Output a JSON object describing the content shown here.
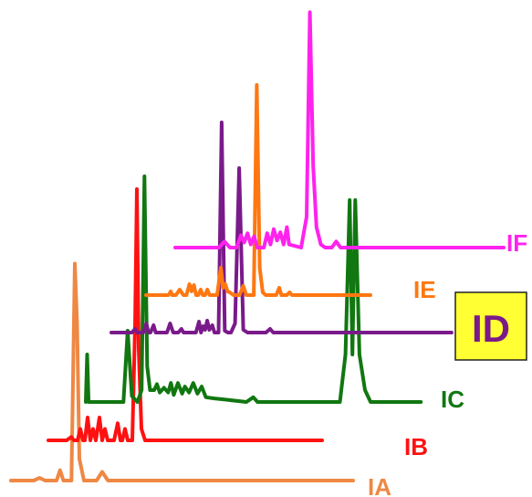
{
  "chart_data": {
    "type": "line",
    "title": "",
    "xlabel": "",
    "ylabel": "",
    "layout": "stacked-waterfall",
    "highlighted_series": "ID",
    "highlight_box_color": "#ffff33",
    "series": [
      {
        "name": "IA",
        "color": "#ee8844",
        "base": 0,
        "points": [
          [
            0,
            0
          ],
          [
            2,
            0
          ],
          [
            2.5,
            0.3
          ],
          [
            3,
            0
          ],
          [
            4,
            0
          ],
          [
            4.3,
            1.2
          ],
          [
            4.6,
            0
          ],
          [
            5.3,
            0
          ],
          [
            5.6,
            25
          ],
          [
            5.8,
            18
          ],
          [
            6,
            2.5
          ],
          [
            6.4,
            0
          ],
          [
            7.5,
            0
          ],
          [
            8,
            1
          ],
          [
            8.5,
            0
          ],
          [
            30,
            0
          ]
        ]
      },
      {
        "name": "IB",
        "color": "#ff1111",
        "base": 0,
        "points": [
          [
            0,
            0
          ],
          [
            2,
            0
          ],
          [
            2.5,
            0.3
          ],
          [
            2.8,
            0
          ],
          [
            3.2,
            0
          ],
          [
            3.5,
            1
          ],
          [
            3.8,
            0
          ],
          [
            4,
            0
          ],
          [
            4.3,
            2
          ],
          [
            4.6,
            0
          ],
          [
            4.9,
            1
          ],
          [
            5.2,
            0
          ],
          [
            5.6,
            2
          ],
          [
            5.9,
            0
          ],
          [
            6.2,
            1
          ],
          [
            6.5,
            0
          ],
          [
            7.2,
            0
          ],
          [
            7.6,
            1.5
          ],
          [
            7.9,
            0
          ],
          [
            8.1,
            0
          ],
          [
            8.4,
            1
          ],
          [
            8.7,
            0
          ],
          [
            9.2,
            0
          ],
          [
            9.5,
            10
          ],
          [
            9.7,
            22
          ],
          [
            9.9,
            8
          ],
          [
            10.2,
            1
          ],
          [
            10.6,
            0
          ],
          [
            30,
            0
          ]
        ]
      },
      {
        "name": "IC",
        "color": "#117711",
        "base": 0,
        "points": [
          [
            0,
            0
          ],
          [
            0.1,
            4
          ],
          [
            0.2,
            0
          ],
          [
            2.7,
            0
          ],
          [
            3,
            6
          ],
          [
            3.3,
            0.5
          ],
          [
            3.7,
            0
          ],
          [
            4,
            1
          ],
          [
            4.2,
            19
          ],
          [
            4.4,
            3
          ],
          [
            4.6,
            1
          ],
          [
            4.9,
            1
          ],
          [
            5.1,
            1.5
          ],
          [
            5.3,
            0.8
          ],
          [
            5.6,
            1.2
          ],
          [
            5.9,
            0.8
          ],
          [
            6.1,
            1.6
          ],
          [
            6.3,
            0.6
          ],
          [
            6.6,
            1.6
          ],
          [
            6.9,
            0.7
          ],
          [
            7.1,
            1.3
          ],
          [
            7.4,
            0.8
          ],
          [
            7.7,
            1.6
          ],
          [
            8,
            0.7
          ],
          [
            8.3,
            1.3
          ],
          [
            8.6,
            0.4
          ],
          [
            9.2,
            0.3
          ],
          [
            10,
            0.2
          ],
          [
            11.5,
            0
          ],
          [
            12,
            0.4
          ],
          [
            12.3,
            0
          ],
          [
            17.5,
            0
          ],
          [
            18.2,
            0
          ],
          [
            18.6,
            4
          ],
          [
            18.9,
            17
          ],
          [
            19.1,
            4
          ],
          [
            19.3,
            17
          ],
          [
            19.6,
            4
          ],
          [
            20,
            1
          ],
          [
            20.4,
            0
          ],
          [
            24,
            0
          ]
        ]
      },
      {
        "name": "ID",
        "color": "#7a1a8a",
        "base": 0,
        "points": [
          [
            0,
            0
          ],
          [
            2,
            0
          ],
          [
            2.3,
            0.4
          ],
          [
            2.5,
            0
          ],
          [
            3.1,
            0
          ],
          [
            3.4,
            1
          ],
          [
            3.6,
            0
          ],
          [
            3.8,
            0
          ],
          [
            4.1,
            0.8
          ],
          [
            4.3,
            0
          ],
          [
            5.4,
            0
          ],
          [
            5.7,
            1
          ],
          [
            6,
            0
          ],
          [
            6.5,
            0
          ],
          [
            6.8,
            0.4
          ],
          [
            7,
            0
          ],
          [
            8.2,
            0
          ],
          [
            8.5,
            1.2
          ],
          [
            8.7,
            0
          ],
          [
            8.9,
            0.7
          ],
          [
            9.1,
            0.3
          ],
          [
            9.3,
            1.3
          ],
          [
            9.5,
            0.3
          ],
          [
            9.8,
            0.8
          ],
          [
            10,
            0
          ],
          [
            10.4,
            0
          ],
          [
            10.7,
            23
          ],
          [
            11,
            0.2
          ],
          [
            11.3,
            0
          ],
          [
            11.6,
            0
          ],
          [
            12,
            1
          ],
          [
            12.4,
            18
          ],
          [
            12.8,
            0.3
          ],
          [
            13.2,
            0
          ],
          [
            15,
            0
          ],
          [
            15.4,
            0.4
          ],
          [
            15.7,
            0
          ],
          [
            33,
            0
          ]
        ]
      },
      {
        "name": "IE",
        "color": "#ff7711",
        "base": 0,
        "points": [
          [
            0,
            0
          ],
          [
            3,
            0
          ],
          [
            3.3,
            0.4
          ],
          [
            3.5,
            0
          ],
          [
            4,
            0
          ],
          [
            4.5,
            0.6
          ],
          [
            5,
            0
          ],
          [
            5.4,
            0
          ],
          [
            5.8,
            1.2
          ],
          [
            6.1,
            0.4
          ],
          [
            6.4,
            1.1
          ],
          [
            6.7,
            0
          ],
          [
            7,
            0
          ],
          [
            7.3,
            0.6
          ],
          [
            7.6,
            0
          ],
          [
            7.9,
            0
          ],
          [
            8.2,
            0.6
          ],
          [
            8.5,
            0
          ],
          [
            9.5,
            0
          ],
          [
            10,
            3
          ],
          [
            10.3,
            0.8
          ],
          [
            10.6,
            1.2
          ],
          [
            10.9,
            0.4
          ],
          [
            11.2,
            0.3
          ],
          [
            11.7,
            0
          ],
          [
            12.5,
            0
          ],
          [
            13,
            1
          ],
          [
            13.4,
            0
          ],
          [
            13.8,
            0
          ],
          [
            14.4,
            0
          ],
          [
            14.8,
            23
          ],
          [
            15.2,
            3
          ],
          [
            15.6,
            0.3
          ],
          [
            16,
            0
          ],
          [
            17.4,
            0
          ],
          [
            17.8,
            0.8
          ],
          [
            18.1,
            0
          ],
          [
            18.8,
            0
          ],
          [
            19.2,
            0.3
          ],
          [
            19.5,
            0
          ],
          [
            30,
            0
          ]
        ]
      },
      {
        "name": "IF",
        "color": "#ff22ee",
        "base": 0,
        "points": [
          [
            0,
            0
          ],
          [
            4,
            0
          ],
          [
            4.5,
            0.6
          ],
          [
            5,
            0
          ],
          [
            5.6,
            0
          ],
          [
            6,
            1.2
          ],
          [
            6.3,
            0.5
          ],
          [
            6.6,
            1.4
          ],
          [
            6.9,
            0.3
          ],
          [
            7.2,
            1.1
          ],
          [
            7.5,
            0
          ],
          [
            8.1,
            0
          ],
          [
            8.4,
            1.4
          ],
          [
            8.7,
            0.3
          ],
          [
            9,
            1.8
          ],
          [
            9.3,
            0.7
          ],
          [
            9.6,
            1.5
          ],
          [
            9.9,
            0.3
          ],
          [
            10.2,
            2
          ],
          [
            10.4,
            0.3
          ],
          [
            11.5,
            0
          ],
          [
            12,
            3
          ],
          [
            12.3,
            23
          ],
          [
            12.6,
            8
          ],
          [
            12.9,
            2
          ],
          [
            13.3,
            0.3
          ],
          [
            13.7,
            0
          ],
          [
            14.3,
            0
          ],
          [
            14.7,
            0.6
          ],
          [
            15.1,
            0
          ],
          [
            30,
            0
          ]
        ]
      }
    ]
  }
}
